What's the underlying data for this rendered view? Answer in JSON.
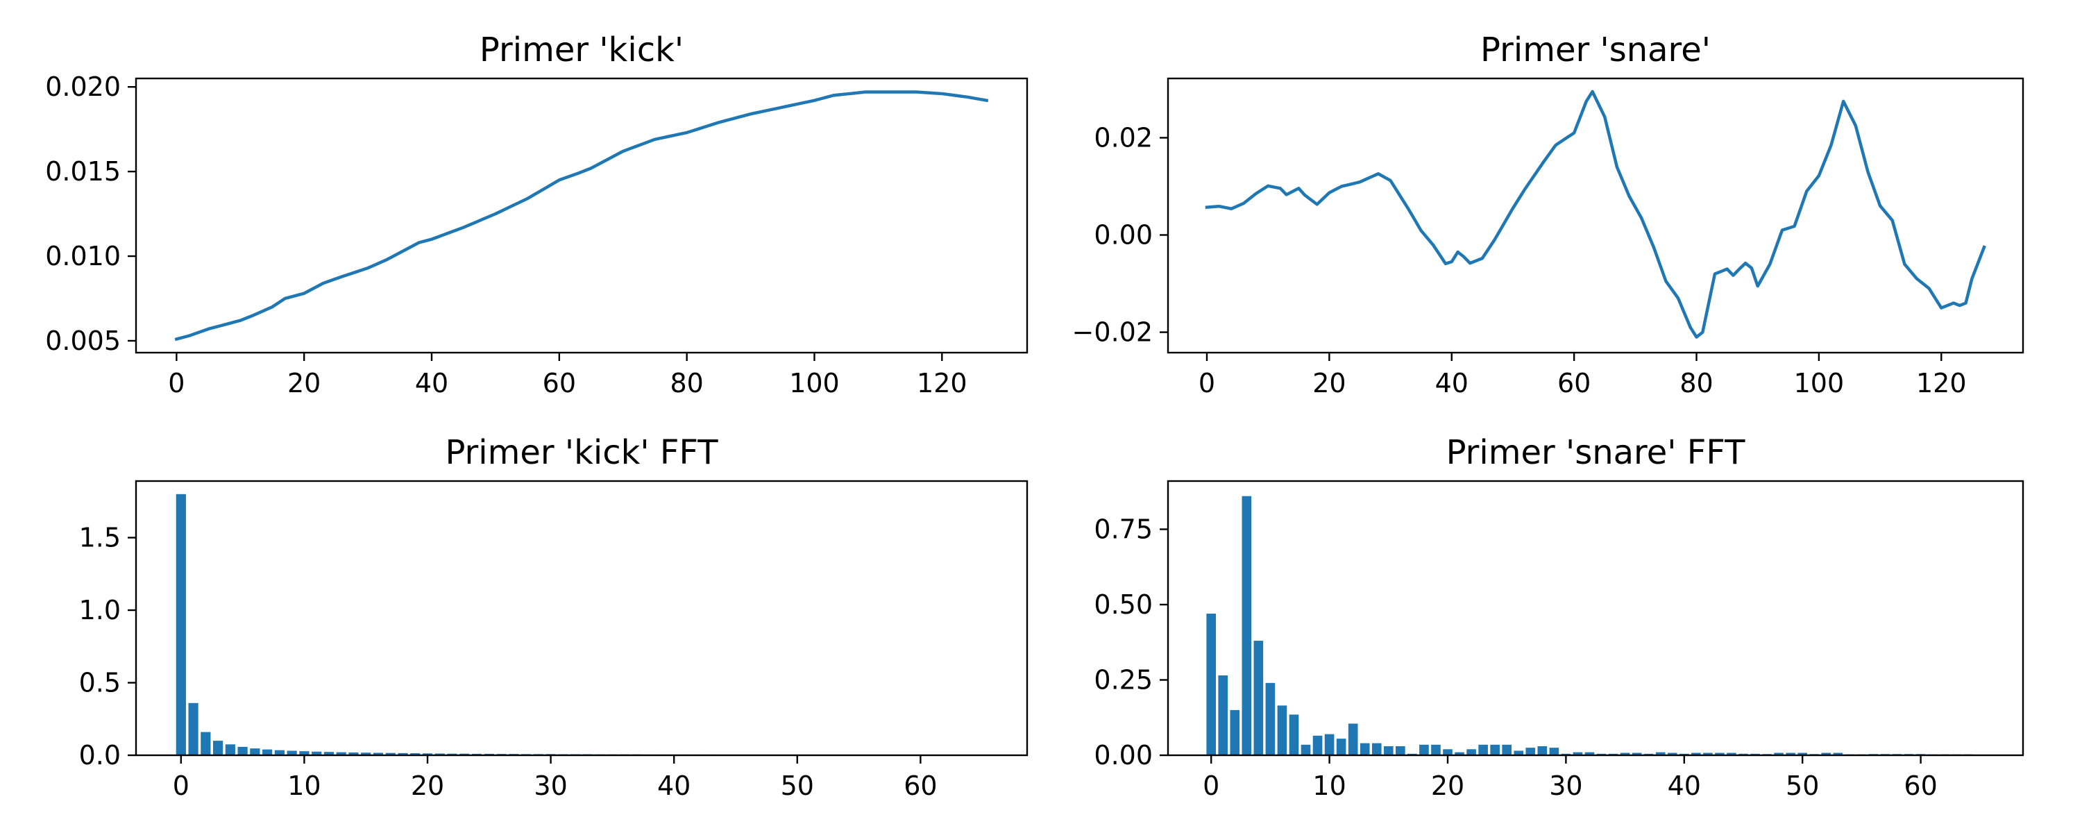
{
  "colors": {
    "series": "#1f77b4",
    "axes": "#000000",
    "background": "#ffffff"
  },
  "chart_data": [
    {
      "type": "line",
      "title": "Primer 'kick'",
      "xlim": [
        -6.35,
        133.35
      ],
      "ylim": [
        0.0043,
        0.0205
      ],
      "xticks": [
        0,
        20,
        40,
        60,
        80,
        100,
        120
      ],
      "yticks": [
        0.005,
        0.01,
        0.015,
        0.02
      ],
      "ytick_decimals": 3,
      "grid": false,
      "keypoints_x": [
        0,
        2,
        5,
        8,
        10,
        12,
        15,
        17,
        20,
        23,
        26,
        30,
        33,
        36,
        38,
        40,
        45,
        50,
        55,
        60,
        63,
        65,
        70,
        75,
        80,
        85,
        90,
        95,
        100,
        103,
        108,
        112,
        116,
        120,
        124,
        127
      ],
      "keypoints_y": [
        0.0051,
        0.0053,
        0.0057,
        0.006,
        0.0062,
        0.0065,
        0.007,
        0.0075,
        0.0078,
        0.0084,
        0.0088,
        0.0093,
        0.0098,
        0.0104,
        0.0108,
        0.011,
        0.0117,
        0.0125,
        0.0134,
        0.0145,
        0.0149,
        0.0152,
        0.0162,
        0.0169,
        0.0173,
        0.0179,
        0.0184,
        0.0188,
        0.0192,
        0.0195,
        0.0197,
        0.0197,
        0.0197,
        0.0196,
        0.0194,
        0.0192
      ]
    },
    {
      "type": "line",
      "title": "Primer 'snare'",
      "xlim": [
        -6.35,
        133.35
      ],
      "ylim": [
        -0.0242,
        0.0322
      ],
      "xticks": [
        0,
        20,
        40,
        60,
        80,
        100,
        120
      ],
      "yticks": [
        -0.02,
        0.0,
        0.02
      ],
      "ytick_decimals": 2,
      "grid": false,
      "keypoints_x": [
        0,
        2,
        4,
        6,
        8,
        10,
        12,
        13,
        15,
        16,
        18,
        20,
        22,
        25,
        28,
        30,
        33,
        35,
        37,
        39,
        40,
        41,
        42,
        43,
        45,
        47,
        50,
        52,
        55,
        57,
        60,
        62,
        63,
        65,
        67,
        69,
        71,
        73,
        75,
        77,
        79,
        80,
        81,
        83,
        85,
        86,
        87,
        88,
        89,
        90,
        92,
        94,
        96,
        98,
        100,
        102,
        104,
        106,
        108,
        110,
        112,
        114,
        116,
        118,
        120,
        122,
        123,
        124,
        125,
        127
      ],
      "keypoints_y": [
        0.0057,
        0.0059,
        0.0054,
        0.0065,
        0.0085,
        0.0101,
        0.0096,
        0.0083,
        0.0096,
        0.0082,
        0.0063,
        0.0087,
        0.01,
        0.0109,
        0.0126,
        0.0112,
        0.0052,
        0.0009,
        -0.0021,
        -0.0059,
        -0.0055,
        -0.0035,
        -0.0045,
        -0.0058,
        -0.0048,
        -0.001,
        0.0055,
        0.0095,
        0.015,
        0.0185,
        0.021,
        0.0275,
        0.0295,
        0.0243,
        0.014,
        0.008,
        0.0035,
        -0.0025,
        -0.0095,
        -0.013,
        -0.019,
        -0.021,
        -0.02,
        -0.008,
        -0.007,
        -0.0083,
        -0.007,
        -0.0058,
        -0.0068,
        -0.0105,
        -0.006,
        0.001,
        0.0018,
        0.009,
        0.0122,
        0.0185,
        0.0275,
        0.0225,
        0.013,
        0.006,
        0.003,
        -0.006,
        -0.009,
        -0.011,
        -0.015,
        -0.014,
        -0.0145,
        -0.014,
        -0.009,
        -0.0025
      ]
    },
    {
      "type": "bar",
      "title": "Primer 'kick' FFT",
      "xlim": [
        -3.65,
        68.65
      ],
      "ylim": [
        0,
        1.89
      ],
      "xticks": [
        0,
        10,
        20,
        30,
        40,
        50,
        60
      ],
      "yticks": [
        0.0,
        0.5,
        1.0,
        1.5
      ],
      "ytick_decimals": 1,
      "grid": false,
      "x": [
        0,
        1,
        2,
        3,
        4,
        5,
        6,
        7,
        8,
        9,
        10,
        11,
        12,
        13,
        14,
        15,
        16,
        17,
        18,
        19,
        20,
        21,
        22,
        23,
        24,
        25,
        26,
        27,
        28,
        29,
        30,
        31,
        32,
        33,
        34,
        35,
        36,
        37,
        38,
        39,
        40,
        41,
        42,
        43,
        44,
        45,
        46,
        47,
        48,
        49,
        50,
        51,
        52,
        53,
        54,
        55,
        56,
        57,
        58,
        59,
        60,
        61,
        62,
        63,
        64
      ],
      "values": [
        1.8,
        0.36,
        0.16,
        0.1,
        0.075,
        0.058,
        0.047,
        0.04,
        0.035,
        0.031,
        0.028,
        0.025,
        0.023,
        0.021,
        0.019,
        0.018,
        0.017,
        0.016,
        0.015,
        0.014,
        0.013,
        0.012,
        0.011,
        0.011,
        0.01,
        0.01,
        0.009,
        0.009,
        0.008,
        0.008,
        0.008,
        0.007,
        0.007,
        0.007,
        0.006,
        0.006,
        0.006,
        0.006,
        0.005,
        0.005,
        0.005,
        0.005,
        0.005,
        0.005,
        0.004,
        0.004,
        0.004,
        0.004,
        0.004,
        0.004,
        0.004,
        0.004,
        0.004,
        0.003,
        0.003,
        0.003,
        0.003,
        0.003,
        0.003,
        0.003,
        0.003,
        0.003,
        0.003,
        0.003,
        0.003
      ]
    },
    {
      "type": "bar",
      "title": "Primer 'snare' FFT",
      "xlim": [
        -3.65,
        68.65
      ],
      "ylim": [
        0,
        0.91
      ],
      "xticks": [
        0,
        10,
        20,
        30,
        40,
        50,
        60
      ],
      "yticks": [
        0.0,
        0.25,
        0.5,
        0.75
      ],
      "ytick_decimals": 2,
      "grid": false,
      "x": [
        0,
        1,
        2,
        3,
        4,
        5,
        6,
        7,
        8,
        9,
        10,
        11,
        12,
        13,
        14,
        15,
        16,
        17,
        18,
        19,
        20,
        21,
        22,
        23,
        24,
        25,
        26,
        27,
        28,
        29,
        30,
        31,
        32,
        33,
        34,
        35,
        36,
        37,
        38,
        39,
        40,
        41,
        42,
        43,
        44,
        45,
        46,
        47,
        48,
        49,
        50,
        51,
        52,
        53,
        54,
        55,
        56,
        57,
        58,
        59,
        60,
        61,
        62,
        63,
        64
      ],
      "values": [
        0.47,
        0.265,
        0.15,
        0.86,
        0.38,
        0.24,
        0.165,
        0.135,
        0.035,
        0.065,
        0.07,
        0.055,
        0.105,
        0.04,
        0.04,
        0.03,
        0.03,
        0.005,
        0.035,
        0.035,
        0.02,
        0.01,
        0.02,
        0.035,
        0.035,
        0.035,
        0.015,
        0.025,
        0.03,
        0.025,
        0.005,
        0.01,
        0.01,
        0.005,
        0.005,
        0.008,
        0.008,
        0.005,
        0.01,
        0.008,
        0.005,
        0.008,
        0.008,
        0.008,
        0.008,
        0.005,
        0.005,
        0.004,
        0.008,
        0.008,
        0.008,
        0.004,
        0.008,
        0.008,
        0.003,
        0.003,
        0.004,
        0.004,
        0.004,
        0.004,
        0.004,
        0.003,
        0.003,
        0.003,
        0.003
      ]
    }
  ]
}
